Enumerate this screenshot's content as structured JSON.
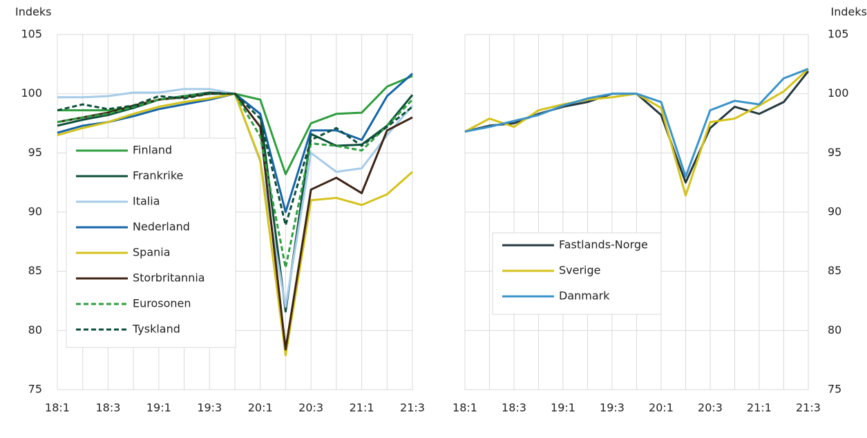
{
  "chart_data": [
    {
      "type": "line",
      "y_label": "Indeks",
      "y_axis_side": "left",
      "legend_position": "lower left",
      "grid": true,
      "categories": [
        "18:1",
        null,
        "18:3",
        null,
        "19:1",
        null,
        "19:3",
        null,
        "20:1",
        null,
        "20:3",
        null,
        "21:1",
        null,
        "21:3"
      ],
      "ylim": [
        75,
        105
      ],
      "yticks": [
        75,
        80,
        85,
        90,
        95,
        100,
        105
      ],
      "series": [
        {
          "name": "Finland",
          "color": "#2e9e3e",
          "dashed": false,
          "values": [
            98.6,
            98.6,
            98.6,
            98.8,
            99.5,
            99.8,
            100.0,
            100.0,
            99.5,
            93.2,
            97.5,
            98.3,
            98.4,
            100.6,
            101.5
          ]
        },
        {
          "name": "Frankrike",
          "color": "#0d4f3a",
          "dashed": false,
          "values": [
            97.3,
            97.8,
            98.2,
            98.8,
            99.5,
            99.8,
            100.1,
            100.0,
            98.3,
            81.6,
            96.6,
            95.6,
            95.7,
            97.3,
            99.9
          ]
        },
        {
          "name": "Italia",
          "color": "#a6cbe8",
          "dashed": false,
          "values": [
            99.7,
            99.7,
            99.8,
            100.1,
            100.1,
            100.4,
            100.4,
            100.0,
            94.3,
            82.0,
            95.0,
            93.4,
            93.7,
            96.5,
            99.0
          ]
        },
        {
          "name": "Nederland",
          "color": "#1565a8",
          "dashed": false,
          "values": [
            96.7,
            97.3,
            97.6,
            98.1,
            98.7,
            99.1,
            99.5,
            100.0,
            98.3,
            90.0,
            96.9,
            96.9,
            96.1,
            99.8,
            101.7
          ]
        },
        {
          "name": "Spania",
          "color": "#d4c21a",
          "dashed": false,
          "values": [
            96.5,
            97.1,
            97.6,
            98.3,
            98.9,
            99.3,
            99.6,
            100.0,
            94.4,
            77.9,
            91.0,
            91.2,
            90.6,
            91.5,
            93.4
          ]
        },
        {
          "name": "Storbritannia",
          "color": "#3d2314",
          "dashed": false,
          "values": [
            97.6,
            98.0,
            98.4,
            99.0,
            99.5,
            99.7,
            100.0,
            100.0,
            97.2,
            78.4,
            91.9,
            92.9,
            91.6,
            96.9,
            98.0
          ]
        },
        {
          "name": "Eurosonen",
          "color": "#2e9e3e",
          "dashed": true,
          "values": [
            97.6,
            98.0,
            98.3,
            98.9,
            99.5,
            99.8,
            100.0,
            100.0,
            96.4,
            85.3,
            95.8,
            95.6,
            95.2,
            97.3,
            99.5
          ]
        },
        {
          "name": "Tyskland",
          "color": "#0d4f3a",
          "dashed": true,
          "values": [
            98.6,
            99.1,
            98.7,
            99.0,
            99.8,
            99.6,
            100.0,
            100.0,
            97.9,
            88.9,
            96.1,
            97.1,
            95.6,
            97.2,
            98.9
          ]
        }
      ]
    },
    {
      "type": "line",
      "y_label": "Indeks",
      "y_axis_side": "right",
      "legend_position": "center left",
      "grid": true,
      "categories": [
        "18:1",
        null,
        "18:3",
        null,
        "19:1",
        null,
        "19:3",
        null,
        "20:1",
        null,
        "20:3",
        null,
        "21:1",
        null,
        "21:3"
      ],
      "ylim": [
        75,
        105
      ],
      "yticks": [
        75,
        80,
        85,
        90,
        95,
        100,
        105
      ],
      "series": [
        {
          "name": "Fastlands-Norge",
          "color": "#23383f",
          "dashed": false,
          "values": [
            96.8,
            97.3,
            97.5,
            98.3,
            98.9,
            99.3,
            100.0,
            100.0,
            98.2,
            92.5,
            97.1,
            98.9,
            98.3,
            99.3,
            101.9
          ]
        },
        {
          "name": "Sverige",
          "color": "#d4c21a",
          "dashed": false,
          "values": [
            96.8,
            97.9,
            97.2,
            98.6,
            99.1,
            99.5,
            99.7,
            100.0,
            98.8,
            91.4,
            97.6,
            97.9,
            99.0,
            100.2,
            102.1
          ]
        },
        {
          "name": "Danmark",
          "color": "#3a93c9",
          "dashed": false,
          "values": [
            96.8,
            97.2,
            97.7,
            98.2,
            99.0,
            99.6,
            100.0,
            100.0,
            99.3,
            93.0,
            98.6,
            99.4,
            99.1,
            101.3,
            102.1
          ]
        }
      ]
    }
  ]
}
